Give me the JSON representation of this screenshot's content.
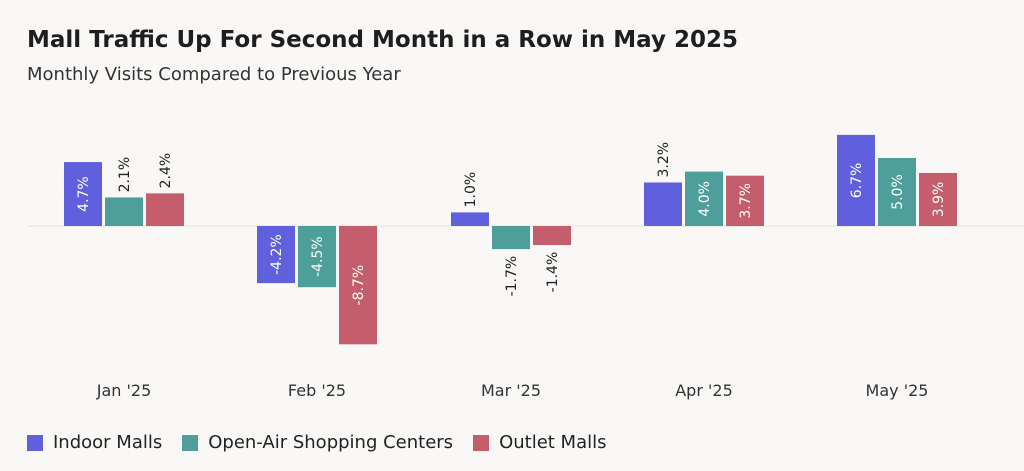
{
  "header": {
    "title": "Mall Traffic Up For Second Month in a Row in May 2025",
    "subtitle": "Monthly Visits Compared to Previous Year"
  },
  "chart_data": {
    "type": "bar",
    "title": "Mall Traffic Up For Second Month in a Row in May 2025",
    "subtitle": "Monthly Visits Compared to Previous Year",
    "xlabel": "",
    "ylabel": "",
    "categories": [
      "Jan '25",
      "Feb '25",
      "Mar '25",
      "Apr '25",
      "May '25"
    ],
    "series": [
      {
        "name": "Indoor Malls",
        "color": "#6060de",
        "values": [
          4.7,
          -4.2,
          1.0,
          3.2,
          6.7
        ],
        "labels": [
          "4.7%",
          "-4.2%",
          "1.0%",
          "3.2%",
          "6.7%"
        ]
      },
      {
        "name": "Open-Air Shopping Centers",
        "color": "#4e9e9a",
        "values": [
          2.1,
          -4.5,
          -1.7,
          4.0,
          5.0
        ],
        "labels": [
          "2.1%",
          "-4.5%",
          "-1.7%",
          "4.0%",
          "5.0%"
        ]
      },
      {
        "name": "Outlet Malls",
        "color": "#c45e6c",
        "values": [
          2.4,
          -8.7,
          -1.4,
          3.7,
          3.9
        ],
        "labels": [
          "2.4%",
          "-8.7%",
          "-1.4%",
          "3.7%",
          "3.9%"
        ]
      }
    ],
    "ylim": [
      -8.7,
      6.7
    ],
    "grid": false,
    "legend_position": "bottom-left"
  }
}
